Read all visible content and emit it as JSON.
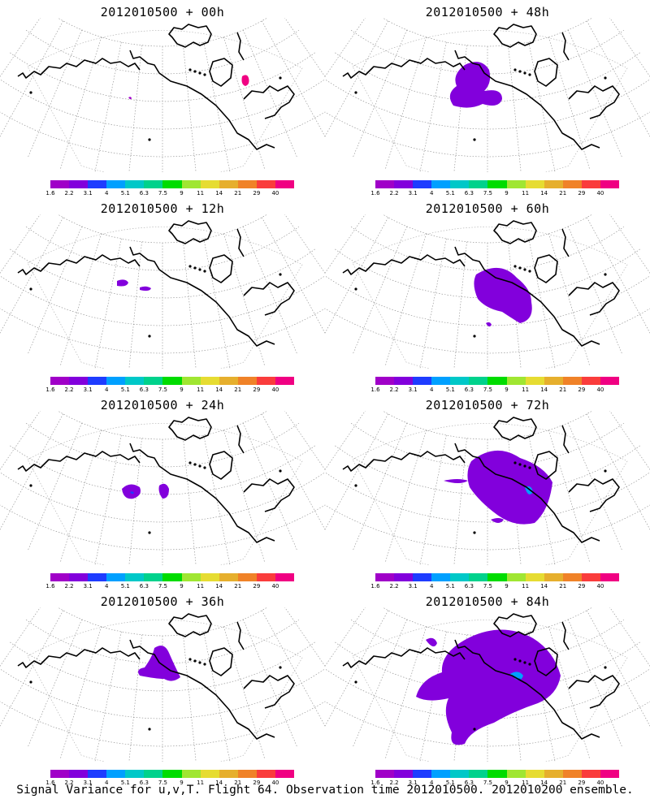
{
  "caption": "Signal Variance for u,v,T. Flight 64. Observation time 2012010500. 2012010200 ensemble.",
  "colorbar": {
    "colors": [
      "#a000c8",
      "#8200dc",
      "#1e3cff",
      "#00a0ff",
      "#00c8c8",
      "#00d28c",
      "#00dc00",
      "#a0e632",
      "#e6dc32",
      "#e6af2d",
      "#f08228",
      "#fa3c3c",
      "#f00082"
    ],
    "tick_labels": [
      "1.6",
      "2.2",
      "3.1",
      "4",
      "5.1",
      "6.3",
      "7.5",
      "9",
      "11",
      "14",
      "21",
      "29",
      "40"
    ]
  },
  "panels": [
    {
      "title": "2012010500 + 00h"
    },
    {
      "title": "2012010500 + 48h"
    },
    {
      "title": "2012010500 + 12h"
    },
    {
      "title": "2012010500 + 60h"
    },
    {
      "title": "2012010500 + 24h"
    },
    {
      "title": "2012010500 + 72h"
    },
    {
      "title": "2012010500 + 36h"
    },
    {
      "title": "2012010500 + 84h"
    }
  ]
}
